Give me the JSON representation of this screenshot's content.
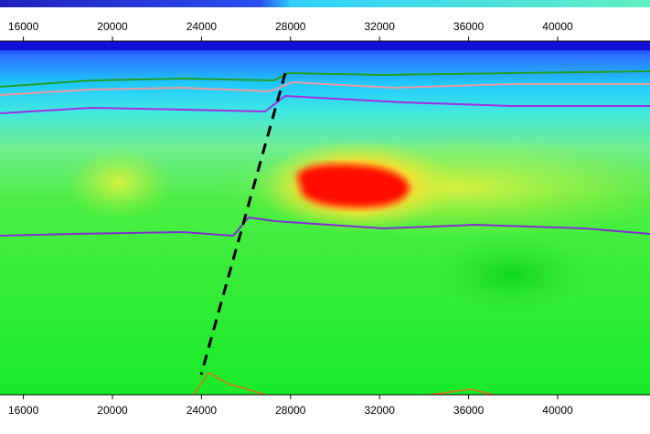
{
  "chart_data": {
    "type": "section",
    "xlim": [
      14949,
      44148
    ],
    "xticks": [
      16000,
      20000,
      24000,
      28000,
      32000,
      36000,
      40000
    ]
  }
}
